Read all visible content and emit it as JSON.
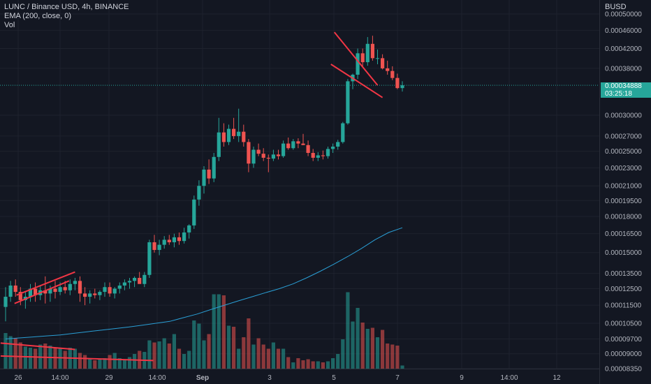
{
  "header": {
    "symbol_line": "LUNC / Binance USD, 4h, BINANCE",
    "ema_line": "EMA (200, close, 0)",
    "vol_line": "Vol"
  },
  "price_scale": {
    "currency": "BUSD",
    "last_price": "0.00034888",
    "countdown": "03:25:18"
  },
  "colors": {
    "background": "#131722",
    "up": "#26a69a",
    "down": "#ef5350",
    "ema": "#2a9fd6",
    "trendline": "#f23645"
  },
  "chart_data": {
    "type": "candlestick",
    "y_scale": "log",
    "ylim": [
      8.35e-05,
      0.0005
    ],
    "y_ticks": [
      "0.00050000",
      "0.00046000",
      "0.00042000",
      "0.00038000",
      "0.00030000",
      "0.00027000",
      "0.00025000",
      "0.00023000",
      "0.00021000",
      "0.00019500",
      "0.00018000",
      "0.00016500",
      "0.00015000",
      "0.00013500",
      "0.00012500",
      "0.00011500",
      "0.00010500",
      "0.00009700",
      "0.00009000",
      "0.00008350"
    ],
    "x_ticks": [
      "26",
      "14:00",
      "29",
      "14:00",
      "Sep",
      "3",
      "5",
      "7",
      "9",
      "14:00",
      "12"
    ],
    "candles": [
      {
        "o": 0.000114,
        "h": 0.000126,
        "l": 0.000106,
        "c": 0.00012
      },
      {
        "o": 0.00012,
        "h": 0.00013,
        "l": 0.000117,
        "c": 0.000127
      },
      {
        "o": 0.000127,
        "h": 0.000131,
        "l": 0.00012,
        "c": 0.000123
      },
      {
        "o": 0.000123,
        "h": 0.000126,
        "l": 0.000115,
        "c": 0.000118
      },
      {
        "o": 0.000118,
        "h": 0.000123,
        "l": 0.000113,
        "c": 0.00012
      },
      {
        "o": 0.00012,
        "h": 0.000128,
        "l": 0.000117,
        "c": 0.000125
      },
      {
        "o": 0.000125,
        "h": 0.000129,
        "l": 0.000117,
        "c": 0.000121
      },
      {
        "o": 0.000121,
        "h": 0.000127,
        "l": 0.000118,
        "c": 0.000124
      },
      {
        "o": 0.000124,
        "h": 0.000133,
        "l": 0.000116,
        "c": 0.000122
      },
      {
        "o": 0.000122,
        "h": 0.000127,
        "l": 0.000117,
        "c": 0.000125
      },
      {
        "o": 0.000125,
        "h": 0.00013,
        "l": 0.000119,
        "c": 0.000123
      },
      {
        "o": 0.000123,
        "h": 0.000129,
        "l": 0.000121,
        "c": 0.000126
      },
      {
        "o": 0.000126,
        "h": 0.00013,
        "l": 0.000122,
        "c": 0.000124
      },
      {
        "o": 0.000124,
        "h": 0.000131,
        "l": 0.000121,
        "c": 0.000128
      },
      {
        "o": 0.000128,
        "h": 0.000132,
        "l": 0.000124,
        "c": 0.00013
      },
      {
        "o": 0.00013,
        "h": 0.000133,
        "l": 0.000117,
        "c": 0.000122
      },
      {
        "o": 0.000122,
        "h": 0.000126,
        "l": 0.000115,
        "c": 0.00012
      },
      {
        "o": 0.00012,
        "h": 0.000124,
        "l": 0.000116,
        "c": 0.000122
      },
      {
        "o": 0.000122,
        "h": 0.000125,
        "l": 0.000119,
        "c": 0.000121
      },
      {
        "o": 0.000121,
        "h": 0.000124,
        "l": 0.000118,
        "c": 0.000123
      },
      {
        "o": 0.000123,
        "h": 0.000129,
        "l": 0.00012,
        "c": 0.000126
      },
      {
        "o": 0.000126,
        "h": 0.000129,
        "l": 0.00012,
        "c": 0.000122
      },
      {
        "o": 0.000122,
        "h": 0.000126,
        "l": 0.000119,
        "c": 0.000125
      },
      {
        "o": 0.000125,
        "h": 0.000129,
        "l": 0.000122,
        "c": 0.000127
      },
      {
        "o": 0.000127,
        "h": 0.000131,
        "l": 0.000124,
        "c": 0.000129
      },
      {
        "o": 0.000129,
        "h": 0.000132,
        "l": 0.000125,
        "c": 0.00013
      },
      {
        "o": 0.00013,
        "h": 0.000133,
        "l": 0.000126,
        "c": 0.000132
      },
      {
        "o": 0.000132,
        "h": 0.000136,
        "l": 0.000129,
        "c": 0.000128
      },
      {
        "o": 0.000128,
        "h": 0.000136,
        "l": 0.000126,
        "c": 0.000134
      },
      {
        "o": 0.000134,
        "h": 0.00016,
        "l": 0.000132,
        "c": 0.000158
      },
      {
        "o": 0.000158,
        "h": 0.000164,
        "l": 0.00015,
        "c": 0.000152
      },
      {
        "o": 0.000152,
        "h": 0.00016,
        "l": 0.000148,
        "c": 0.000156
      },
      {
        "o": 0.000156,
        "h": 0.000163,
        "l": 0.000153,
        "c": 0.00016
      },
      {
        "o": 0.00016,
        "h": 0.000164,
        "l": 0.000156,
        "c": 0.000158
      },
      {
        "o": 0.000158,
        "h": 0.000165,
        "l": 0.000154,
        "c": 0.000162
      },
      {
        "o": 0.000162,
        "h": 0.000166,
        "l": 0.000156,
        "c": 0.000159
      },
      {
        "o": 0.000159,
        "h": 0.00017,
        "l": 0.000157,
        "c": 0.000166
      },
      {
        "o": 0.000166,
        "h": 0.000173,
        "l": 0.000161,
        "c": 0.000172
      },
      {
        "o": 0.000172,
        "h": 0.0002,
        "l": 0.000169,
        "c": 0.000196
      },
      {
        "o": 0.000196,
        "h": 0.000216,
        "l": 0.00019,
        "c": 0.00021
      },
      {
        "o": 0.00021,
        "h": 0.000232,
        "l": 0.000202,
        "c": 0.000228
      },
      {
        "o": 0.000228,
        "h": 0.00024,
        "l": 0.000212,
        "c": 0.000218
      },
      {
        "o": 0.000218,
        "h": 0.000248,
        "l": 0.000214,
        "c": 0.000243
      },
      {
        "o": 0.000243,
        "h": 0.000296,
        "l": 0.000238,
        "c": 0.000275
      },
      {
        "o": 0.000275,
        "h": 0.000288,
        "l": 0.000256,
        "c": 0.000262
      },
      {
        "o": 0.000262,
        "h": 0.000286,
        "l": 0.000258,
        "c": 0.00028
      },
      {
        "o": 0.00028,
        "h": 0.000296,
        "l": 0.000266,
        "c": 0.00027
      },
      {
        "o": 0.00027,
        "h": 0.00031,
        "l": 0.000262,
        "c": 0.000276
      },
      {
        "o": 0.000276,
        "h": 0.000286,
        "l": 0.000256,
        "c": 0.000262
      },
      {
        "o": 0.000262,
        "h": 0.000266,
        "l": 0.000225,
        "c": 0.000235
      },
      {
        "o": 0.000235,
        "h": 0.000256,
        "l": 0.00023,
        "c": 0.000252
      },
      {
        "o": 0.000252,
        "h": 0.00026,
        "l": 0.000244,
        "c": 0.000247
      },
      {
        "o": 0.000247,
        "h": 0.000254,
        "l": 0.000238,
        "c": 0.000242
      },
      {
        "o": 0.000242,
        "h": 0.000246,
        "l": 0.000225,
        "c": 0.000241
      },
      {
        "o": 0.000241,
        "h": 0.000252,
        "l": 0.000238,
        "c": 0.000246
      },
      {
        "o": 0.000246,
        "h": 0.000252,
        "l": 0.00024,
        "c": 0.000244
      },
      {
        "o": 0.000244,
        "h": 0.000264,
        "l": 0.000242,
        "c": 0.00026
      },
      {
        "o": 0.00026,
        "h": 0.000268,
        "l": 0.000252,
        "c": 0.000254
      },
      {
        "o": 0.000254,
        "h": 0.000266,
        "l": 0.000252,
        "c": 0.000263
      },
      {
        "o": 0.000263,
        "h": 0.000267,
        "l": 0.000254,
        "c": 0.00026
      },
      {
        "o": 0.00026,
        "h": 0.000273,
        "l": 0.000258,
        "c": 0.000258
      },
      {
        "o": 0.000258,
        "h": 0.000264,
        "l": 0.000244,
        "c": 0.000248
      },
      {
        "o": 0.000248,
        "h": 0.000253,
        "l": 0.000238,
        "c": 0.000242
      },
      {
        "o": 0.000242,
        "h": 0.000249,
        "l": 0.000238,
        "c": 0.000245
      },
      {
        "o": 0.000245,
        "h": 0.000251,
        "l": 0.00024,
        "c": 0.000244
      },
      {
        "o": 0.000244,
        "h": 0.000256,
        "l": 0.000241,
        "c": 0.000253
      },
      {
        "o": 0.000253,
        "h": 0.00026,
        "l": 0.000248,
        "c": 0.000256
      },
      {
        "o": 0.000256,
        "h": 0.000265,
        "l": 0.000252,
        "c": 0.000262
      },
      {
        "o": 0.000262,
        "h": 0.00029,
        "l": 0.00026,
        "c": 0.000288
      },
      {
        "o": 0.000288,
        "h": 0.00036,
        "l": 0.000286,
        "c": 0.000356
      },
      {
        "o": 0.000356,
        "h": 0.00037,
        "l": 0.000342,
        "c": 0.000368
      },
      {
        "o": 0.000368,
        "h": 0.00042,
        "l": 0.00036,
        "c": 0.00041
      },
      {
        "o": 0.00041,
        "h": 0.00042,
        "l": 0.000382,
        "c": 0.000392
      },
      {
        "o": 0.000392,
        "h": 0.000445,
        "l": 0.000385,
        "c": 0.00043
      },
      {
        "o": 0.00043,
        "h": 0.000448,
        "l": 0.000395,
        "c": 0.0004
      },
      {
        "o": 0.0004,
        "h": 0.000418,
        "l": 0.000388,
        "c": 0.0004
      },
      {
        "o": 0.0004,
        "h": 0.000408,
        "l": 0.000378,
        "c": 0.00038
      },
      {
        "o": 0.00038,
        "h": 0.000395,
        "l": 0.000368,
        "c": 0.000375
      },
      {
        "o": 0.000375,
        "h": 0.000384,
        "l": 0.000358,
        "c": 0.000362
      },
      {
        "o": 0.000362,
        "h": 0.00037,
        "l": 0.000342,
        "c": 0.000344
      },
      {
        "o": 0.000344,
        "h": 0.000356,
        "l": 0.000338,
        "c": 0.0003489
      }
    ],
    "volume": [
      0.34,
      0.31,
      0.29,
      0.25,
      0.21,
      0.2,
      0.19,
      0.23,
      0.24,
      0.22,
      0.2,
      0.19,
      0.17,
      0.2,
      0.19,
      0.15,
      0.13,
      0.1,
      0.08,
      0.09,
      0.1,
      0.13,
      0.15,
      0.1,
      0.09,
      0.11,
      0.14,
      0.17,
      0.16,
      0.27,
      0.25,
      0.26,
      0.29,
      0.24,
      0.33,
      0.19,
      0.14,
      0.17,
      0.46,
      0.43,
      0.27,
      0.33,
      0.71,
      0.71,
      0.7,
      0.41,
      0.4,
      0.19,
      0.3,
      0.48,
      0.23,
      0.29,
      0.23,
      0.19,
      0.25,
      0.19,
      0.19,
      0.11,
      0.06,
      0.1,
      0.08,
      0.09,
      0.07,
      0.07,
      0.06,
      0.07,
      0.1,
      0.14,
      0.28,
      0.73,
      0.45,
      0.58,
      0.44,
      0.38,
      0.39,
      0.3,
      0.37,
      0.24,
      0.23,
      0.22,
      0.03
    ],
    "ema200": [
      9.7e-05,
      9.75e-05,
      9.8e-05,
      9.85e-05,
      9.9e-05,
      9.98e-05,
      0.0001006,
      0.0001014,
      0.0001022,
      0.000103,
      0.000104,
      0.000105,
      0.000106,
      0.000108,
      0.00011,
      0.0001125,
      0.000115,
      0.0001175,
      0.00012,
      0.0001225,
      0.000125,
      0.000128,
      0.000132,
      0.0001365,
      0.0001415,
      0.000147,
      0.000153,
      0.00016,
      0.000166,
      0.00017
    ],
    "trendlines": [
      {
        "start": [
          1.8,
          0.000116
        ],
        "end": [
          12.8,
          0.00013
        ]
      },
      {
        "start": [
          2.2,
          0.000121
        ],
        "end": [
          14.0,
          0.000136
        ]
      },
      {
        "start": [
          66.3,
          0.000456
        ],
        "end": [
          75.0,
          0.000349
        ]
      },
      {
        "start": [
          65.6,
          0.000388
        ],
        "end": [
          76.0,
          0.000328
        ]
      },
      {
        "start": [
          -1.0,
          9.5e-05
        ],
        "end": [
          14.0,
          9.2e-05
        ]
      },
      {
        "start": [
          -1.0,
          8.9e-05
        ],
        "end": [
          29.8,
          8.7e-05
        ]
      }
    ]
  }
}
